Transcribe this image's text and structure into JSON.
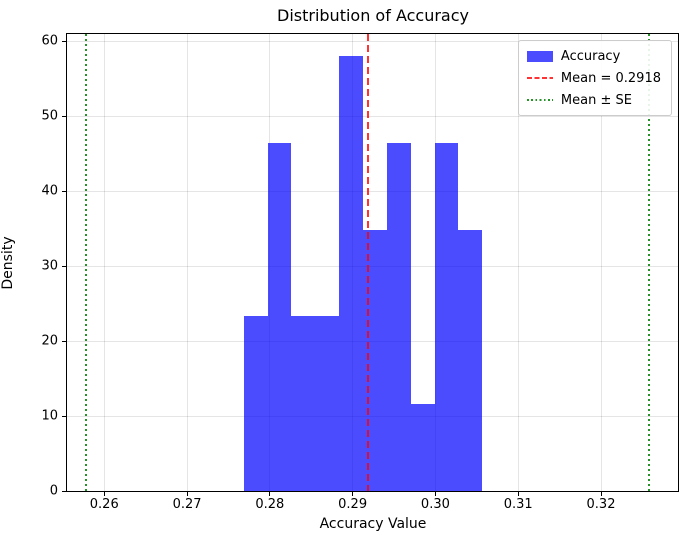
{
  "figure": {
    "title": "Distribution of Accuracy",
    "xlabel": "Accuracy Value",
    "ylabel": "Density"
  },
  "legend": {
    "position": "upper right",
    "items": [
      {
        "label": "Accuracy",
        "type": "patch",
        "color": "#0000ff",
        "alpha": 0.7
      },
      {
        "label": "Mean = 0.2918",
        "type": "dashed-line",
        "color": "#ff0000",
        "alpha": 0.8
      },
      {
        "label": "Mean ± SE",
        "type": "dotted-line",
        "color": "#008000",
        "alpha": 0.85
      }
    ]
  },
  "chart_data": {
    "type": "bar",
    "subtype": "histogram-density",
    "title": "Distribution of Accuracy",
    "xlabel": "Accuracy Value",
    "ylabel": "Density",
    "bin_edges": [
      0.2769,
      0.2798,
      0.2826,
      0.2855,
      0.2884,
      0.2913,
      0.2941,
      0.297,
      0.2999,
      0.3027,
      0.3056
    ],
    "densities": [
      23.3,
      46.5,
      23.3,
      23.3,
      58.1,
      34.9,
      46.5,
      11.6,
      46.5,
      34.9
    ],
    "mean": 0.2918,
    "mean_minus_se": 0.2578,
    "mean_plus_se": 0.3258,
    "xlim": [
      0.2555,
      0.3293
    ],
    "ylim": [
      0,
      61
    ],
    "x_ticks": [
      {
        "value": 0.26,
        "label": "0.26"
      },
      {
        "value": 0.27,
        "label": "0.27"
      },
      {
        "value": 0.28,
        "label": "0.28"
      },
      {
        "value": 0.29,
        "label": "0.29"
      },
      {
        "value": 0.3,
        "label": "0.30"
      },
      {
        "value": 0.31,
        "label": "0.31"
      },
      {
        "value": 0.32,
        "label": "0.32"
      }
    ],
    "y_ticks": [
      {
        "value": 0,
        "label": "0"
      },
      {
        "value": 10,
        "label": "10"
      },
      {
        "value": 20,
        "label": "20"
      },
      {
        "value": 30,
        "label": "30"
      },
      {
        "value": 40,
        "label": "40"
      },
      {
        "value": 50,
        "label": "50"
      },
      {
        "value": 60,
        "label": "60"
      }
    ],
    "grid": true,
    "legend_position": "upper right",
    "bar_color": "#0000ff",
    "bar_alpha": 0.7,
    "mean_line_color": "#ff0000",
    "mean_line_alpha": 0.8,
    "mean_line_style": "dashed",
    "se_line_color": "#008000",
    "se_line_alpha": 0.85,
    "se_line_style": "dotted"
  }
}
